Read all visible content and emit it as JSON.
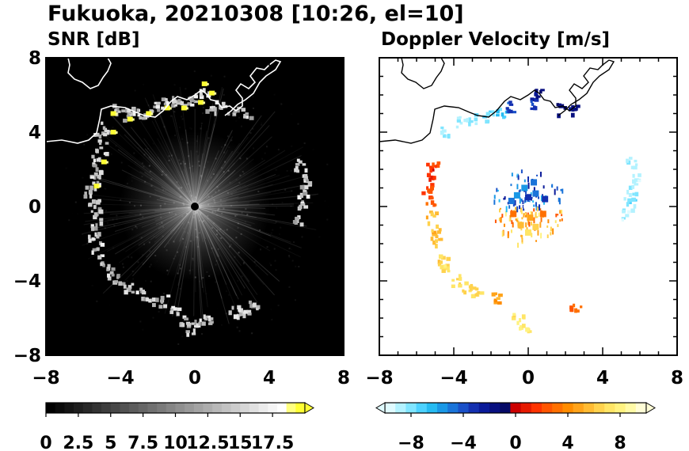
{
  "figure_title": "Fukuoka, 20210308 [10:26, el=10]",
  "chart_data": [
    {
      "type": "heatmap",
      "title": "SNR [dB]",
      "x_ticks": [
        "−8",
        "−4",
        "0",
        "4",
        "8"
      ],
      "y_ticks": [
        "8",
        "4",
        "0",
        "−4",
        "−8"
      ],
      "xlim": [
        -8,
        8
      ],
      "ylim": [
        -8,
        8
      ],
      "background": "#000000",
      "coastline_color": "#ffffff",
      "colorbar": {
        "ticks": [
          "0",
          "2.5",
          "5",
          "7.5",
          "10",
          "12.5",
          "15",
          "17.5"
        ],
        "range": [
          0,
          20
        ],
        "extend": "max",
        "colors": [
          "#000000",
          "#0a0a0a",
          "#141414",
          "#1e1e1e",
          "#282828",
          "#333333",
          "#3d3d3d",
          "#474747",
          "#515151",
          "#5c5c5c",
          "#666666",
          "#707070",
          "#7a7a7a",
          "#858585",
          "#8f8f8f",
          "#999999",
          "#a3a3a3",
          "#adadad",
          "#b8b8b8",
          "#c2c2c2",
          "#cccccc",
          "#d6d6d6",
          "#e0e0e0",
          "#ebebeb",
          "#f5f5f5",
          "#ffffff",
          "#ffff80",
          "#ffff33"
        ]
      },
      "echo_points": [
        [
          -4.2,
          5.3
        ],
        [
          -3.7,
          5.0
        ],
        [
          -3.2,
          5.1
        ],
        [
          -2.6,
          5.0
        ],
        [
          -2.1,
          5.5
        ],
        [
          -1.5,
          5.7
        ],
        [
          -1.0,
          5.8
        ],
        [
          -0.5,
          5.7
        ],
        [
          0.0,
          5.9
        ],
        [
          0.4,
          6.1
        ],
        [
          0.8,
          5.5
        ],
        [
          1.3,
          5.4
        ],
        [
          2.0,
          5.2
        ],
        [
          2.7,
          5.1
        ],
        [
          -4.8,
          4.3
        ],
        [
          -5.2,
          3.8
        ],
        [
          -5.1,
          3.2
        ],
        [
          -5.3,
          2.6
        ],
        [
          -5.2,
          2.0
        ],
        [
          -5.5,
          1.5
        ],
        [
          -5.7,
          0.9
        ],
        [
          -5.5,
          0.3
        ],
        [
          -5.3,
          -0.3
        ],
        [
          -5.3,
          -0.9
        ],
        [
          -5.5,
          -1.5
        ],
        [
          -5.3,
          -2.1
        ],
        [
          -5.0,
          -2.8
        ],
        [
          -4.6,
          -3.5
        ],
        [
          -4.2,
          -3.9
        ],
        [
          -3.6,
          -4.3
        ],
        [
          -3.0,
          -4.6
        ],
        [
          -2.4,
          -4.9
        ],
        [
          -1.8,
          -5.0
        ],
        [
          -1.1,
          -5.6
        ],
        [
          -0.7,
          -6.0
        ],
        [
          -0.3,
          -6.5
        ],
        [
          0.2,
          -6.3
        ],
        [
          0.7,
          -6.1
        ],
        [
          2.1,
          -5.6
        ],
        [
          2.6,
          -5.5
        ],
        [
          3.0,
          -5.3
        ],
        [
          5.6,
          2.3
        ],
        [
          5.7,
          1.8
        ],
        [
          5.8,
          1.2
        ],
        [
          5.7,
          0.6
        ],
        [
          5.6,
          0.0
        ],
        [
          5.5,
          -0.6
        ]
      ],
      "bright_points": [
        [
          -4.4,
          4.0
        ],
        [
          -4.9,
          2.4
        ],
        [
          -5.3,
          1.1
        ],
        [
          -4.4,
          5.0
        ],
        [
          -3.5,
          4.7
        ],
        [
          -2.5,
          5.0
        ],
        [
          -1.5,
          5.3
        ],
        [
          -0.6,
          5.3
        ],
        [
          0.3,
          5.6
        ],
        [
          0.5,
          6.6
        ],
        [
          0.9,
          6.1
        ]
      ]
    },
    {
      "type": "heatmap",
      "title": "Doppler Velocity [m/s]",
      "x_ticks": [
        "−8",
        "−4",
        "0",
        "4",
        "8"
      ],
      "y_ticks": [
        "8",
        "4",
        "0",
        "−4",
        "−8"
      ],
      "xlim": [
        -8,
        8
      ],
      "ylim": [
        -8,
        8
      ],
      "background": "#ffffff",
      "coastline_color": "#000000",
      "colorbar": {
        "ticks": [
          "−8",
          "−4",
          "0",
          "4",
          "8"
        ],
        "range": [
          -10,
          10
        ],
        "extend": "both",
        "colors": [
          "#e0fbff",
          "#b3f2ff",
          "#80e5ff",
          "#4dd2ff",
          "#26bbf2",
          "#1a98e6",
          "#1a74d9",
          "#1a50c8",
          "#1430b0",
          "#0a1a99",
          "#081080",
          "#060a66",
          "#cc0000",
          "#e61a00",
          "#ff3300",
          "#ff5500",
          "#ff7000",
          "#ff8c00",
          "#ffa31a",
          "#ffbb33",
          "#ffd24d",
          "#ffe566",
          "#fff280",
          "#fffaa6",
          "#fffdd6"
        ]
      },
      "echo_points": [
        [
          -4.5,
          4.1,
          -8.5
        ],
        [
          -3.7,
          4.6,
          -8.5
        ],
        [
          -3.1,
          4.8,
          -8.0
        ],
        [
          -2.2,
          4.9,
          -7.5
        ],
        [
          -1.5,
          5.1,
          -7.0
        ],
        [
          -1.0,
          5.4,
          -4.0
        ],
        [
          0.2,
          5.6,
          -3.5
        ],
        [
          0.6,
          6.2,
          -1.5
        ],
        [
          1.6,
          5.3,
          -1.5
        ],
        [
          2.4,
          5.3,
          -2.0
        ],
        [
          -5.2,
          2.3,
          1.5
        ],
        [
          -5.4,
          1.8,
          1.0
        ],
        [
          -5.5,
          1.1,
          2.0
        ],
        [
          -5.3,
          0.4,
          2.5
        ],
        [
          -5.2,
          -0.5,
          5.5
        ],
        [
          -5.1,
          -1.2,
          5.5
        ],
        [
          -5.0,
          -1.8,
          6.0
        ],
        [
          -4.7,
          -2.8,
          6.5
        ],
        [
          -4.5,
          -3.3,
          7.0
        ],
        [
          -4.0,
          -3.9,
          7.0
        ],
        [
          -3.4,
          -4.3,
          6.5
        ],
        [
          -2.8,
          -4.6,
          6.5
        ],
        [
          -1.9,
          -4.9,
          5.0
        ],
        [
          -0.6,
          -5.9,
          7.0
        ],
        [
          -0.3,
          -6.4,
          7.5
        ],
        [
          2.5,
          -5.4,
          3.0
        ],
        [
          5.5,
          2.4,
          -9.0
        ],
        [
          5.6,
          1.7,
          -9.0
        ],
        [
          5.5,
          1.0,
          -8.5
        ],
        [
          5.4,
          0.3,
          -8.0
        ],
        [
          5.3,
          -0.4,
          -8.5
        ]
      ],
      "center_points": [
        [
          -0.6,
          0.6,
          -5.5
        ],
        [
          0.4,
          0.7,
          -5.0
        ],
        [
          -0.2,
          1.0,
          -5.5
        ],
        [
          0.3,
          1.3,
          -4.5
        ],
        [
          0.9,
          0.4,
          -3.0
        ],
        [
          -0.9,
          0.3,
          -4.5
        ],
        [
          0.0,
          0.5,
          -3.0
        ],
        [
          -0.8,
          -0.4,
          3.0
        ],
        [
          0.8,
          -0.4,
          3.5
        ],
        [
          0.1,
          -0.6,
          4.5
        ],
        [
          -0.4,
          -1.0,
          5.5
        ],
        [
          0.4,
          -1.1,
          6.0
        ],
        [
          0.0,
          -1.4,
          7.5
        ]
      ]
    }
  ]
}
